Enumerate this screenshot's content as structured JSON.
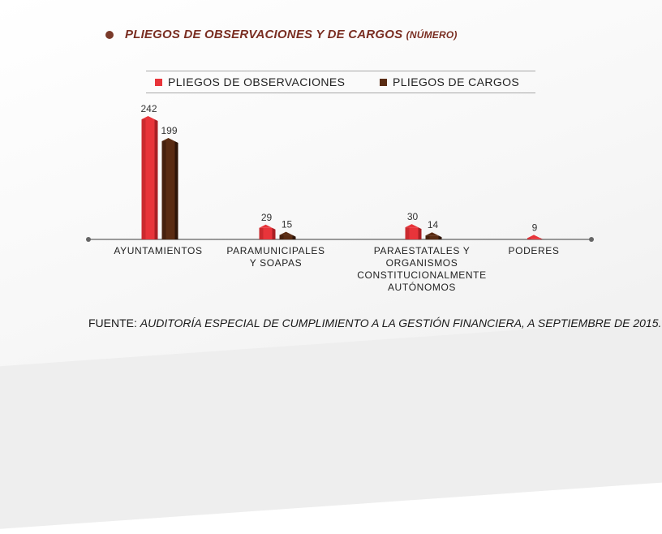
{
  "title": "PLIEGOS DE OBSERVACIONES Y DE CARGOS",
  "title_unit": "(NÚMERO)",
  "colors": {
    "series1": "#e8343a",
    "series2": "#5a2c13",
    "title": "#7a2e22"
  },
  "chart_data": {
    "type": "bar",
    "categories": [
      "AYUNTAMIENTOS",
      "PARAMUNICIPALES Y SOAPAS",
      "PARAESTATALES Y ORGANISMOS CONSTITUCIONALMENTE AUTÓNOMOS",
      "PODERES"
    ],
    "category_lines": [
      [
        "AYUNTAMIENTOS"
      ],
      [
        "PARAMUNICIPALES",
        "Y SOAPAS"
      ],
      [
        "PARAESTATALES Y",
        "ORGANISMOS",
        "CONSTITUCIONALMENTE",
        "AUTÓNOMOS"
      ],
      [
        "PODERES"
      ]
    ],
    "series": [
      {
        "name": "PLIEGOS DE OBSERVACIONES",
        "values": [
          242,
          29,
          30,
          9
        ]
      },
      {
        "name": "PLIEGOS DE CARGOS",
        "values": [
          199,
          15,
          14,
          null
        ]
      }
    ],
    "data_labels": true,
    "legend_position": "top",
    "grid": false
  },
  "source": {
    "label": "FUENTE:",
    "text": "AUDITORÍA ESPECIAL DE CUMPLIMIENTO A LA GESTIÓN FINANCIERA, A SEPTIEMBRE DE 2015."
  }
}
